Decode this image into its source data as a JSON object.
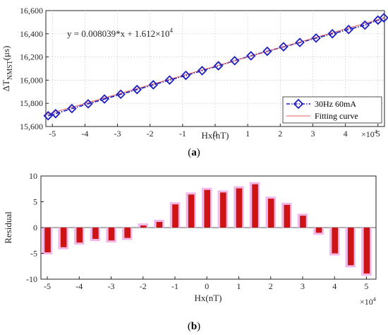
{
  "chart_data": [
    {
      "type": "line",
      "panel_label": "a",
      "equation": "y = 0.008039*x + 1.612×10",
      "equation_exp": "4",
      "xlabel": "Hx(nT)",
      "ylabel_main": "ΔT",
      "ylabel_sub": "NMST",
      "ylabel_unit": "(μs)",
      "x_multiplier": "×10",
      "x_multiplier_exp": "4",
      "xlim": [
        -5.2,
        5.2
      ],
      "ylim": [
        15600,
        16600
      ],
      "xticks": [
        "-5",
        "-4",
        "-3",
        "-2",
        "-1",
        "0",
        "1",
        "2",
        "3",
        "4",
        "5"
      ],
      "yticks": [
        "15,600",
        "15,800",
        "16,000",
        "16,200",
        "16,400",
        "16,600"
      ],
      "grid": true,
      "legend_position": "bottom-right",
      "legend": [
        "30Hz 60mA",
        "Fitting curve"
      ],
      "fit": {
        "slope": 0.008039,
        "intercept": 16120
      },
      "series": [
        {
          "name": "30Hz 60mA",
          "color": "#1f1fbf",
          "marker": "diamond",
          "x": [
            -5.13,
            -4.9,
            -4.4,
            -3.9,
            -3.4,
            -2.9,
            -2.4,
            -1.9,
            -1.4,
            -0.9,
            -0.4,
            0.1,
            0.6,
            1.1,
            1.6,
            2.1,
            2.6,
            3.1,
            3.6,
            4.1,
            4.6,
            5.0,
            5.18
          ],
          "y": [
            15693,
            15711,
            15755,
            15796,
            15837,
            15878,
            15919,
            15960,
            16001,
            16041,
            16082,
            16124,
            16168,
            16210,
            16249,
            16288,
            16325,
            16363,
            16400,
            16437,
            16475,
            16518,
            16538
          ]
        },
        {
          "name": "Fitting curve",
          "color": "#e06060",
          "x": [
            -5.2,
            5.2
          ],
          "y": [
            15702,
            16538
          ]
        }
      ]
    },
    {
      "type": "bar",
      "panel_label": "b",
      "xlabel": "Hx(nT)",
      "ylabel": "Residual",
      "x_multiplier": "×10",
      "x_multiplier_exp": "4",
      "xlim": [
        -5.2,
        5.3
      ],
      "ylim": [
        -10,
        10
      ],
      "xticks": [
        "-5",
        "-4",
        "-3",
        "-2",
        "-1",
        "0",
        "1",
        "2",
        "3",
        "4",
        "5"
      ],
      "yticks": [
        "10",
        "5",
        "0",
        "-5",
        "-10"
      ],
      "grid": false,
      "bar_color": "#cc1414",
      "shadow_color": "#f2b8e8",
      "x": [
        -5.0,
        -4.5,
        -4.0,
        -3.5,
        -3.0,
        -2.5,
        -2.0,
        -1.5,
        -1.0,
        -0.5,
        0.0,
        0.5,
        1.0,
        1.5,
        2.0,
        2.5,
        3.0,
        3.5,
        4.0,
        4.5,
        5.0
      ],
      "values": [
        -4.8,
        -3.8,
        -2.9,
        -2.2,
        -2.5,
        -2.0,
        0.4,
        1.1,
        4.5,
        6.4,
        7.3,
        6.8,
        7.6,
        8.4,
        5.6,
        4.4,
        2.3,
        -1.0,
        -5.0,
        -7.3,
        -8.9
      ]
    }
  ]
}
